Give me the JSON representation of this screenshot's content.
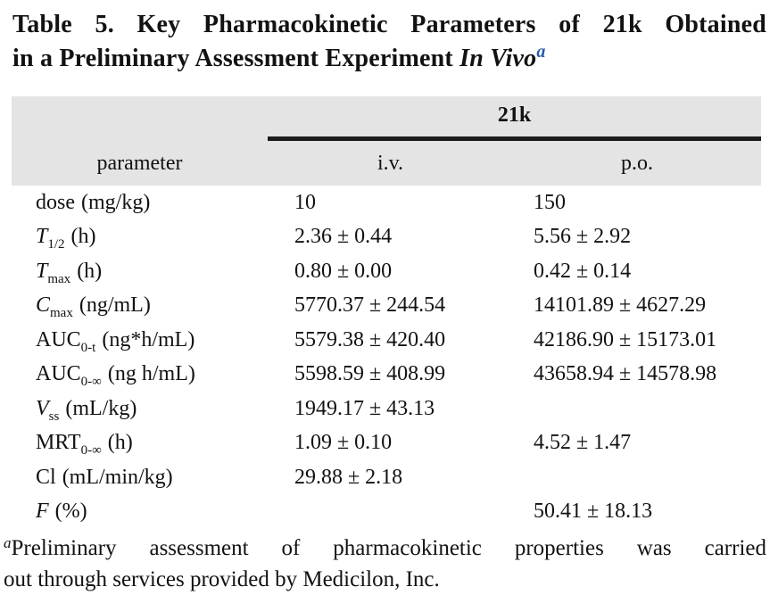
{
  "title": {
    "line1": "Table 5. Key Pharmacokinetic Parameters of 21k Obtained",
    "line2_prefix": "in a Preliminary Assessment Experiment ",
    "line2_italic": "In Vivo",
    "superscript": "a"
  },
  "table": {
    "group_header": "21k",
    "columns": {
      "parameter": "parameter",
      "iv": "i.v.",
      "po": "p.o."
    },
    "rows": [
      {
        "sym": "dose",
        "italic": false,
        "sub": "",
        "unit": "(mg/kg)",
        "iv": "10",
        "po": "150"
      },
      {
        "sym": "T",
        "italic": true,
        "sub": "1/2",
        "unit": "(h)",
        "iv": "2.36 ± 0.44",
        "po": "5.56 ± 2.92"
      },
      {
        "sym": "T",
        "italic": true,
        "sub": "max",
        "unit": "(h)",
        "iv": "0.80 ± 0.00",
        "po": "0.42 ± 0.14"
      },
      {
        "sym": "C",
        "italic": true,
        "sub": "max",
        "unit": "(ng/mL)",
        "iv": "5770.37 ± 244.54",
        "po": "14101.89 ± 4627.29"
      },
      {
        "sym": "AUC",
        "italic": false,
        "sub": "0-t",
        "unit": "(ng*h/mL)",
        "iv": "5579.38 ± 420.40",
        "po": "42186.90 ± 15173.01"
      },
      {
        "sym": "AUC",
        "italic": false,
        "sub": "0-∞",
        "unit": "(ng h/mL)",
        "iv": "5598.59 ± 408.99",
        "po": "43658.94 ± 14578.98"
      },
      {
        "sym": "V",
        "italic": true,
        "sub": "ss",
        "unit": "(mL/kg)",
        "iv": "1949.17 ± 43.13",
        "po": ""
      },
      {
        "sym": "MRT",
        "italic": false,
        "sub": "0-∞",
        "unit": "(h)",
        "iv": "1.09 ± 0.10",
        "po": "4.52 ± 1.47"
      },
      {
        "sym": "Cl",
        "italic": false,
        "sub": "",
        "unit": "(mL/min/kg)",
        "iv": "29.88 ± 2.18",
        "po": ""
      },
      {
        "sym": "F",
        "italic": true,
        "sub": "",
        "unit": "(%)",
        "iv": "",
        "po": "50.41 ± 18.13"
      }
    ]
  },
  "footnote": {
    "superscript": "a",
    "line1": "Preliminary assessment of pharmacokinetic properties was carried",
    "line2": "out through services provided by Medicilon, Inc."
  },
  "colors": {
    "header_bg": "#e4e4e4",
    "rule": "#1c1c1c",
    "superscript_blue": "#2a5caa",
    "text": "#121212"
  }
}
